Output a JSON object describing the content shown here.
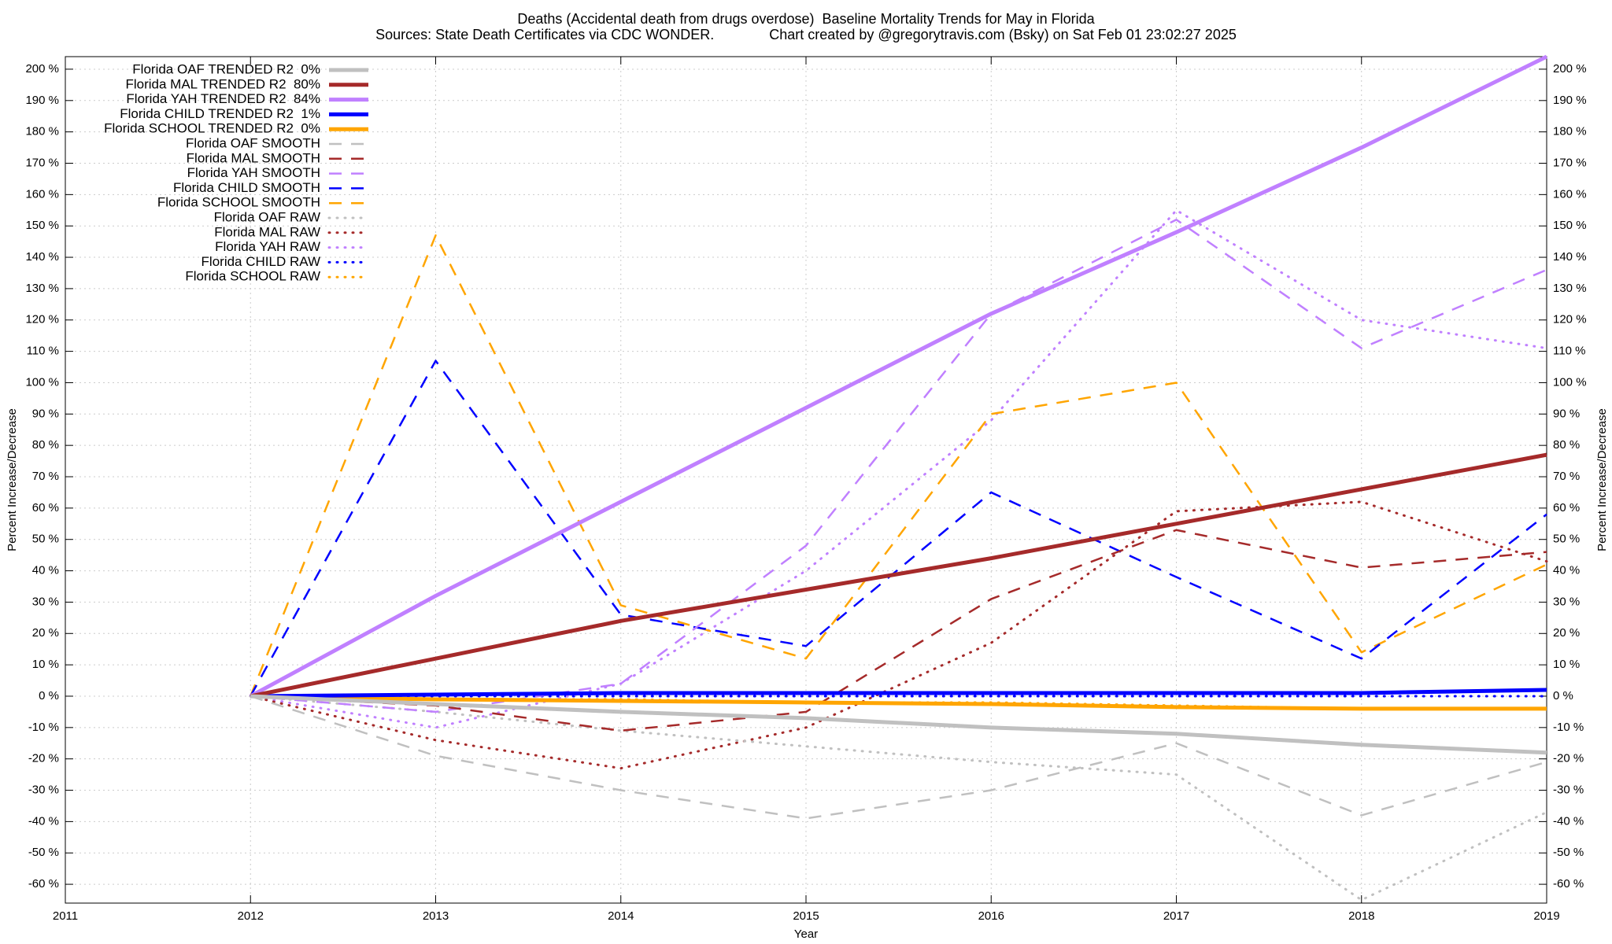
{
  "chart_data": {
    "type": "line",
    "title": "Deaths (Accidental death from drugs overdose)  Baseline Mortality Trends for May in Florida",
    "subtitle": "Sources: State Death Certificates via CDC WONDER.              Chart created by @gregorytravis.com (Bsky) on Sat Feb 01 23:02:27 2025",
    "xlabel": "Year",
    "ylabel": "Percent Increase/Decrease",
    "y2label": "Percent Increase/Decrease",
    "x": [
      2012,
      2013,
      2014,
      2015,
      2016,
      2017,
      2018,
      2019
    ],
    "xlim": [
      2011,
      2019
    ],
    "xticks": [
      2011,
      2012,
      2013,
      2014,
      2015,
      2016,
      2017,
      2018,
      2019
    ],
    "ylim": [
      -66,
      204
    ],
    "yticks": [
      {
        "value": -60,
        "label": "-60 %"
      },
      {
        "value": -50,
        "label": "-50 %"
      },
      {
        "value": -40,
        "label": "-40 %"
      },
      {
        "value": -30,
        "label": "-30 %"
      },
      {
        "value": -20,
        "label": "-20 %"
      },
      {
        "value": -10,
        "label": "-10 %"
      },
      {
        "value": 0,
        "label": "0 %"
      },
      {
        "value": 10,
        "label": "10 %"
      },
      {
        "value": 20,
        "label": "20 %"
      },
      {
        "value": 30,
        "label": "30 %"
      },
      {
        "value": 40,
        "label": "40 %"
      },
      {
        "value": 50,
        "label": "50 %"
      },
      {
        "value": 60,
        "label": "60 %"
      },
      {
        "value": 70,
        "label": "70 %"
      },
      {
        "value": 80,
        "label": "80 %"
      },
      {
        "value": 90,
        "label": "90 %"
      },
      {
        "value": 100,
        "label": "100 %"
      },
      {
        "value": 110,
        "label": "110 %"
      },
      {
        "value": 120,
        "label": "120 %"
      },
      {
        "value": 130,
        "label": "130 %"
      },
      {
        "value": 140,
        "label": "140 %"
      },
      {
        "value": 150,
        "label": "150 %"
      },
      {
        "value": 160,
        "label": "160 %"
      },
      {
        "value": 170,
        "label": "170 %"
      },
      {
        "value": 180,
        "label": "180 %"
      },
      {
        "value": 190,
        "label": "190 %"
      },
      {
        "value": 200,
        "label": "200 %"
      }
    ],
    "y2lim": [
      -66,
      204
    ],
    "y2ticks": [
      {
        "value": -60,
        "label": "-60 %"
      },
      {
        "value": -50,
        "label": "-50 %"
      },
      {
        "value": -40,
        "label": "-40 %"
      },
      {
        "value": -30,
        "label": "-30 %"
      },
      {
        "value": -20,
        "label": "-20 %"
      },
      {
        "value": -10,
        "label": "-10 %"
      },
      {
        "value": 0,
        "label": "0 %"
      },
      {
        "value": 10,
        "label": "10 %"
      },
      {
        "value": 20,
        "label": "20 %"
      },
      {
        "value": 30,
        "label": "30 %"
      },
      {
        "value": 40,
        "label": "40 %"
      },
      {
        "value": 50,
        "label": "50 %"
      },
      {
        "value": 60,
        "label": "60 %"
      },
      {
        "value": 70,
        "label": "70 %"
      },
      {
        "value": 80,
        "label": "80 %"
      },
      {
        "value": 90,
        "label": "90 %"
      },
      {
        "value": 100,
        "label": "100 %"
      },
      {
        "value": 110,
        "label": "110 %"
      },
      {
        "value": 120,
        "label": "120 %"
      },
      {
        "value": 130,
        "label": "130 %"
      },
      {
        "value": 140,
        "label": "140 %"
      },
      {
        "value": 150,
        "label": "150 %"
      },
      {
        "value": 160,
        "label": "160 %"
      },
      {
        "value": 170,
        "label": "170 %"
      },
      {
        "value": 180,
        "label": "180 %"
      },
      {
        "value": 190,
        "label": "190 %"
      },
      {
        "value": 200,
        "label": "200 %"
      }
    ],
    "grid": true,
    "legend": "top-left",
    "series": [
      {
        "name": "Florida OAF TRENDED R2  0%",
        "color": "#c0c0c0",
        "style": "solid",
        "values": [
          0,
          -2.5,
          -5,
          -7,
          -10,
          -12,
          -15.5,
          -18
        ]
      },
      {
        "name": "Florida MAL TRENDED R2  80%",
        "color": "#a52a2a",
        "style": "solid",
        "values": [
          0,
          12,
          24,
          34,
          44,
          55,
          66,
          77
        ]
      },
      {
        "name": "Florida YAH TRENDED R2  84%",
        "color": "#c080ff",
        "style": "solid",
        "values": [
          0,
          32,
          62,
          92,
          122,
          148,
          175,
          204
        ]
      },
      {
        "name": "Florida CHILD TRENDED R2  1%",
        "color": "#0000ff",
        "style": "solid",
        "values": [
          0,
          0.5,
          1,
          1,
          1,
          1,
          1,
          2
        ]
      },
      {
        "name": "Florida SCHOOL TRENDED R2  0%",
        "color": "#ffa500",
        "style": "solid",
        "values": [
          0,
          -1,
          -1.5,
          -2,
          -2.5,
          -3.5,
          -4,
          -4
        ]
      },
      {
        "name": "Florida OAF SMOOTH",
        "color": "#c0c0c0",
        "style": "dashed",
        "values": [
          0,
          -19,
          -30,
          -39,
          -30,
          -15,
          -38,
          -21
        ]
      },
      {
        "name": "Florida MAL SMOOTH",
        "color": "#a52a2a",
        "style": "dashed",
        "values": [
          0,
          -3,
          -11,
          -5,
          31,
          53,
          41,
          46
        ]
      },
      {
        "name": "Florida YAH SMOOTH",
        "color": "#c080ff",
        "style": "dashed",
        "values": [
          0,
          -5,
          4,
          48,
          122,
          152,
          111,
          136
        ]
      },
      {
        "name": "Florida CHILD SMOOTH",
        "color": "#0000ff",
        "style": "dashed",
        "values": [
          0,
          107,
          26,
          16,
          65,
          38,
          12,
          58
        ]
      },
      {
        "name": "Florida SCHOOL SMOOTH",
        "color": "#ffa500",
        "style": "dashed",
        "values": [
          0,
          147,
          29,
          12,
          90,
          100,
          14,
          42
        ]
      },
      {
        "name": "Florida OAF RAW",
        "color": "#c0c0c0",
        "style": "dotted",
        "values": [
          0,
          -5,
          -11,
          -16,
          -21,
          -25,
          -65,
          -37
        ]
      },
      {
        "name": "Florida MAL RAW",
        "color": "#a52a2a",
        "style": "dotted",
        "values": [
          0,
          -14,
          -23,
          -10,
          17,
          59,
          62,
          43
        ]
      },
      {
        "name": "Florida YAH RAW",
        "color": "#c080ff",
        "style": "dotted",
        "values": [
          0,
          -10,
          4,
          40,
          88,
          155,
          120,
          111
        ]
      },
      {
        "name": "Florida CHILD RAW",
        "color": "#0000ff",
        "style": "dotted",
        "values": [
          0,
          0,
          0,
          0,
          0,
          0,
          0,
          0
        ]
      },
      {
        "name": "Florida SCHOOL RAW",
        "color": "#ffa500",
        "style": "dotted",
        "values": [
          0,
          -1,
          -1,
          -2,
          -2,
          -3,
          -4,
          -4
        ]
      }
    ]
  }
}
